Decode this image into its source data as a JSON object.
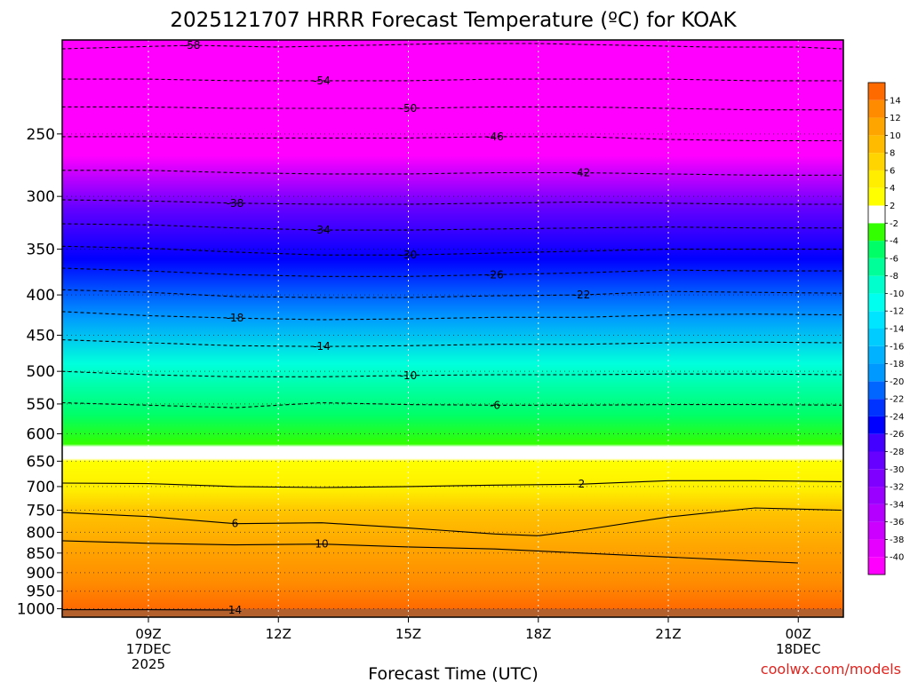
{
  "chart_data": {
    "type": "heatmap",
    "title": "2025121707 HRRR Forecast Temperature (ºC) for KOAK",
    "xlabel": "Forecast Time (UTC)",
    "credit": "coolwx.com/models",
    "x_ticks": [
      {
        "hour": 2,
        "lines": [
          "09Z",
          "17DEC",
          "2025"
        ]
      },
      {
        "hour": 5,
        "lines": [
          "12Z"
        ]
      },
      {
        "hour": 8,
        "lines": [
          "15Z"
        ]
      },
      {
        "hour": 11,
        "lines": [
          "18Z"
        ]
      },
      {
        "hour": 14,
        "lines": [
          "21Z"
        ]
      },
      {
        "hour": 17,
        "lines": [
          "00Z",
          "18DEC"
        ]
      }
    ],
    "y_ticks": [
      250,
      300,
      350,
      400,
      450,
      500,
      550,
      600,
      650,
      700,
      750,
      800,
      850,
      900,
      950,
      1000
    ],
    "colorbar": {
      "levels": [
        -42,
        -40,
        -38,
        -36,
        -34,
        -32,
        -30,
        -28,
        -26,
        -24,
        -22,
        -20,
        -18,
        -16,
        -14,
        -12,
        -10,
        -8,
        -6,
        -4,
        -2,
        2,
        4,
        6,
        8,
        10,
        12,
        14,
        16
      ],
      "labels": [
        "-40",
        "-38",
        "-36",
        "-34",
        "-32",
        "-30",
        "-28",
        "-26",
        "-24",
        "-22",
        "-20",
        "-18",
        "-16",
        "-14",
        "-12",
        "-10",
        "-8",
        "-6",
        "-4",
        "-2",
        "2",
        "4",
        "6",
        "8",
        "10",
        "12",
        "14"
      ],
      "colors": [
        "#ff00ff",
        "#e600ff",
        "#cc00ff",
        "#b300ff",
        "#9900ff",
        "#7f00ff",
        "#6600ff",
        "#4400ff",
        "#0000ff",
        "#0033ff",
        "#0066ff",
        "#0099ff",
        "#00b2ff",
        "#00ccff",
        "#00e5ff",
        "#00ffee",
        "#00ffcc",
        "#00ff99",
        "#00ff66",
        "#33ff00",
        "#ffffff",
        "#ffff00",
        "#ffee00",
        "#ffd400",
        "#ffbb00",
        "#ffa500",
        "#ff8c00",
        "#ff6a00"
      ]
    },
    "contours": [
      {
        "label": "-58",
        "points": [
          [
            0,
            195
          ],
          [
            1.5,
            194
          ],
          [
            3,
            193
          ],
          [
            5,
            194
          ],
          [
            7,
            193
          ],
          [
            9,
            192
          ],
          [
            11,
            192
          ],
          [
            13,
            193
          ],
          [
            15,
            194
          ],
          [
            17,
            194
          ],
          [
            18,
            195
          ]
        ]
      },
      {
        "label": "-54",
        "points": [
          [
            0,
            213
          ],
          [
            2,
            213
          ],
          [
            4,
            214
          ],
          [
            6,
            214
          ],
          [
            8,
            214
          ],
          [
            10,
            213
          ],
          [
            12,
            213
          ],
          [
            14,
            213
          ],
          [
            16,
            214
          ],
          [
            18,
            214
          ]
        ]
      },
      {
        "label": "-50",
        "points": [
          [
            0,
            231
          ],
          [
            2,
            231
          ],
          [
            4,
            232
          ],
          [
            6,
            232
          ],
          [
            8,
            232
          ],
          [
            10,
            231
          ],
          [
            12,
            231
          ],
          [
            14,
            232
          ],
          [
            16,
            233
          ],
          [
            18,
            233
          ]
        ]
      },
      {
        "label": "-46",
        "points": [
          [
            0,
            252
          ],
          [
            2,
            252
          ],
          [
            4,
            253
          ],
          [
            6,
            253
          ],
          [
            8,
            253
          ],
          [
            10,
            252
          ],
          [
            12,
            252
          ],
          [
            14,
            254
          ],
          [
            16,
            255
          ],
          [
            18,
            255
          ]
        ]
      },
      {
        "label": "-42",
        "points": [
          [
            0,
            278
          ],
          [
            2,
            278
          ],
          [
            4,
            280
          ],
          [
            6,
            281
          ],
          [
            8,
            281
          ],
          [
            10,
            280
          ],
          [
            12,
            280
          ],
          [
            14,
            281
          ],
          [
            16,
            282
          ],
          [
            18,
            282
          ]
        ]
      },
      {
        "label": "-38",
        "points": [
          [
            0,
            303
          ],
          [
            2,
            304
          ],
          [
            4,
            306
          ],
          [
            6,
            307
          ],
          [
            8,
            307
          ],
          [
            10,
            306
          ],
          [
            12,
            305
          ],
          [
            14,
            306
          ],
          [
            16,
            307
          ],
          [
            18,
            307
          ]
        ]
      },
      {
        "label": "-34",
        "points": [
          [
            0,
            325
          ],
          [
            2,
            326
          ],
          [
            4,
            329
          ],
          [
            6,
            331
          ],
          [
            8,
            331
          ],
          [
            10,
            330
          ],
          [
            12,
            329
          ],
          [
            14,
            328
          ],
          [
            16,
            329
          ],
          [
            18,
            329
          ]
        ]
      },
      {
        "label": "-30",
        "points": [
          [
            0,
            347
          ],
          [
            2,
            349
          ],
          [
            4,
            353
          ],
          [
            6,
            356
          ],
          [
            8,
            356
          ],
          [
            10,
            354
          ],
          [
            12,
            352
          ],
          [
            14,
            350
          ],
          [
            16,
            350
          ],
          [
            18,
            350
          ]
        ]
      },
      {
        "label": "-26",
        "points": [
          [
            0,
            370
          ],
          [
            2,
            373
          ],
          [
            4,
            377
          ],
          [
            6,
            379
          ],
          [
            8,
            379
          ],
          [
            10,
            377
          ],
          [
            12,
            375
          ],
          [
            14,
            372
          ],
          [
            16,
            373
          ],
          [
            18,
            373
          ]
        ]
      },
      {
        "label": "-22",
        "points": [
          [
            0,
            394
          ],
          [
            2,
            397
          ],
          [
            4,
            402
          ],
          [
            6,
            403
          ],
          [
            8,
            403
          ],
          [
            10,
            401
          ],
          [
            12,
            400
          ],
          [
            14,
            396
          ],
          [
            16,
            397
          ],
          [
            18,
            398
          ]
        ]
      },
      {
        "label": "-18",
        "points": [
          [
            0,
            420
          ],
          [
            2,
            425
          ],
          [
            4,
            428
          ],
          [
            6,
            430
          ],
          [
            8,
            429
          ],
          [
            10,
            427
          ],
          [
            12,
            427
          ],
          [
            14,
            424
          ],
          [
            16,
            423
          ],
          [
            18,
            424
          ]
        ]
      },
      {
        "label": "-14",
        "points": [
          [
            0,
            456
          ],
          [
            2,
            460
          ],
          [
            4,
            464
          ],
          [
            6,
            465
          ],
          [
            8,
            464
          ],
          [
            10,
            462
          ],
          [
            12,
            462
          ],
          [
            14,
            460
          ],
          [
            16,
            459
          ],
          [
            18,
            460
          ]
        ]
      },
      {
        "label": "-10",
        "points": [
          [
            0,
            500
          ],
          [
            2,
            505
          ],
          [
            4,
            508
          ],
          [
            6,
            508
          ],
          [
            8,
            506
          ],
          [
            10,
            505
          ],
          [
            12,
            505
          ],
          [
            14,
            504
          ],
          [
            16,
            504
          ],
          [
            18,
            505
          ]
        ]
      },
      {
        "label": "-6",
        "points": [
          [
            0,
            548
          ],
          [
            2,
            552
          ],
          [
            4,
            556
          ],
          [
            6,
            548
          ],
          [
            8,
            551
          ],
          [
            10,
            552
          ],
          [
            12,
            552
          ],
          [
            14,
            551
          ],
          [
            16,
            551
          ],
          [
            18,
            552
          ]
        ]
      },
      {
        "label": "2",
        "points": [
          [
            0,
            693
          ],
          [
            2,
            694
          ],
          [
            4,
            700
          ],
          [
            6,
            702
          ],
          [
            8,
            700
          ],
          [
            10,
            697
          ],
          [
            12,
            695
          ],
          [
            14,
            688
          ],
          [
            16,
            688
          ],
          [
            18,
            690
          ]
        ]
      },
      {
        "label": "6",
        "points": [
          [
            0,
            755
          ],
          [
            2,
            764
          ],
          [
            4,
            780
          ],
          [
            6,
            778
          ],
          [
            8,
            790
          ],
          [
            10,
            804
          ],
          [
            11,
            808
          ],
          [
            12,
            795
          ],
          [
            14,
            765
          ],
          [
            16,
            745
          ],
          [
            18,
            750
          ]
        ]
      },
      {
        "label": "10",
        "points": [
          [
            0,
            820
          ],
          [
            2,
            826
          ],
          [
            4,
            830
          ],
          [
            6,
            828
          ],
          [
            8,
            835
          ],
          [
            10,
            840
          ],
          [
            12,
            850
          ],
          [
            14,
            860
          ],
          [
            16,
            870
          ],
          [
            17,
            875
          ]
        ]
      },
      {
        "label": "14",
        "points": [
          [
            0,
            1003
          ],
          [
            2,
            1003
          ],
          [
            4,
            1004
          ]
        ]
      }
    ]
  }
}
